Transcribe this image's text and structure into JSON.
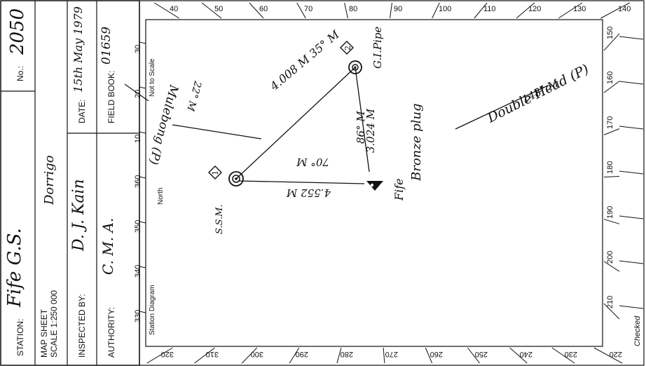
{
  "form": {
    "station_label": "STATION:",
    "station_value": "Fife G.S.",
    "number_label": "No.:",
    "number_value": "2050",
    "map_sheet_label": "MAP SHEET",
    "scale_label": "SCALE 1:250 000",
    "map_sheet_value": "Dorrigo",
    "inspected_label": "INSPECTED BY:",
    "inspected_value": "D. J. Kain",
    "date_label": "DATE:",
    "date_value": "15th May 1979",
    "authority_label": "AUTHORITY:",
    "authority_value": "C. M. A.",
    "field_book_label": "FIELD BOOK:",
    "field_book_value": "01659",
    "checked_label": "Checked"
  },
  "diagram": {
    "title": "Station Diagram",
    "not_to_scale": "Not to Scale",
    "north": "North",
    "bearings_top": [
      "40",
      "50",
      "60",
      "70",
      "80",
      "90",
      "100",
      "110",
      "120",
      "130",
      "140"
    ],
    "bearings_bottom": [
      "320",
      "310",
      "300",
      "290",
      "280",
      "270",
      "260",
      "250",
      "240",
      "230",
      "220"
    ],
    "bearings_right": [
      "150",
      "160",
      "170",
      "180",
      "190",
      "200",
      "210"
    ],
    "bearings_left": [
      "30",
      "20",
      "10",
      "360",
      "350",
      "340",
      "330"
    ],
    "marker_1": "1",
    "marker_2": "2",
    "ssm_label": "S.S.M.",
    "gi_pipe": "G.I.Pipe",
    "fife": "Fife",
    "bronze_plug": "Bronze plug",
    "line_1_2": "4.008 M  35° M",
    "line_2_plug_a": "86° M",
    "line_2_plug_b": "3.024 M",
    "line_1_plug_a": "70° M",
    "line_1_plug_b": "4.552 M",
    "mulebong": "Mulebong (P)",
    "mulebong_bearing": "22° M",
    "double_head": "Double Head (P)",
    "double_head_bearing": "148° M"
  }
}
